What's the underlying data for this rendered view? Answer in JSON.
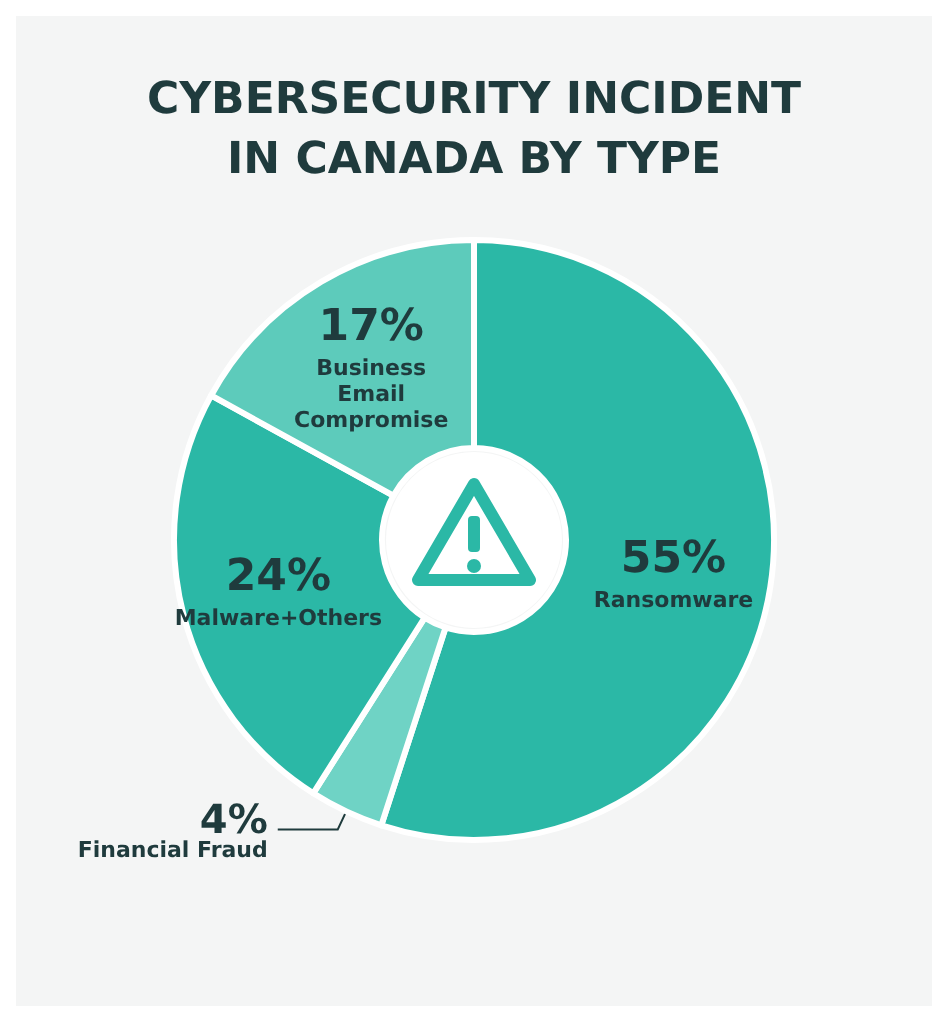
{
  "chart_data": {
    "type": "donut",
    "title": "CYBERSECURITY INCIDENT\nIN CANADA BY TYPE",
    "categories": [
      "Ransomware",
      "Financial Fraud",
      "Malware+Others",
      "Business\nEmail\nCompromise"
    ],
    "values": [
      55,
      4,
      24,
      17
    ],
    "colors": [
      "#2bb8a6",
      "#6fd3c5",
      "#2bb8a6",
      "#5dcbbb"
    ],
    "value_labels": [
      "55%",
      "4%",
      "24%",
      "17%"
    ],
    "legend": false
  }
}
